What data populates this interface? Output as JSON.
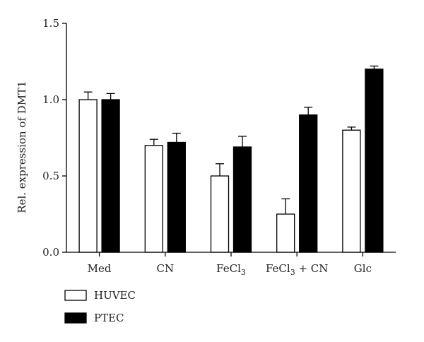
{
  "chart_data": {
    "type": "bar",
    "title": "",
    "xlabel": "",
    "ylabel": "Rel. expression of DMT1",
    "ylim": [
      0,
      1.5
    ],
    "yticks": [
      "0.0",
      "0.5",
      "1.0",
      "1.5"
    ],
    "categories": [
      {
        "main": "Med",
        "sub": "",
        "tail": ""
      },
      {
        "main": "CN",
        "sub": "",
        "tail": ""
      },
      {
        "main": "FeCl",
        "sub": "3",
        "tail": ""
      },
      {
        "main": "FeCl",
        "sub": "3",
        "tail": " + CN"
      },
      {
        "main": "Glc",
        "sub": "",
        "tail": ""
      }
    ],
    "series": [
      {
        "name": "HUVEC",
        "color": "#ffffff",
        "values": [
          1.0,
          0.7,
          0.5,
          0.25,
          0.8
        ],
        "errors": [
          0.05,
          0.04,
          0.08,
          0.1,
          0.02
        ]
      },
      {
        "name": "PTEC",
        "color": "#000000",
        "values": [
          1.0,
          0.72,
          0.69,
          0.9,
          1.2
        ],
        "errors": [
          0.04,
          0.06,
          0.07,
          0.05,
          0.02
        ]
      }
    ],
    "grid": false,
    "legend": "bottom-left"
  }
}
